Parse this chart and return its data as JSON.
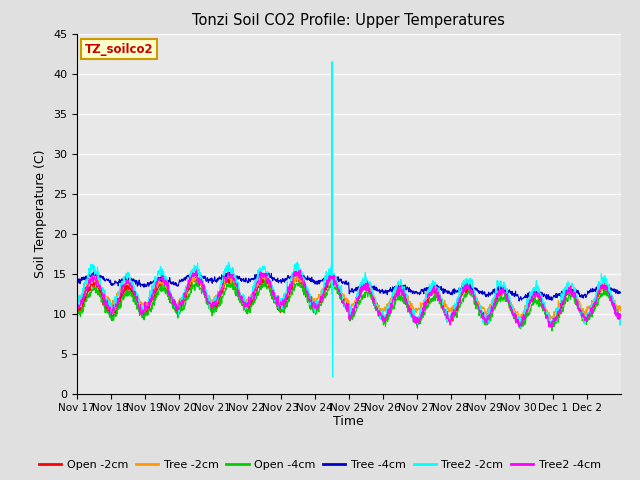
{
  "title": "Tonzi Soil CO2 Profile: Upper Temperatures",
  "ylabel": "Soil Temperature (C)",
  "xlabel": "Time",
  "watermark": "TZ_soilco2",
  "ylim": [
    0,
    45
  ],
  "yticks": [
    0,
    5,
    10,
    15,
    20,
    25,
    30,
    35,
    40,
    45
  ],
  "x_tick_labels": [
    "Nov 17",
    "Nov 18",
    "Nov 19",
    "Nov 20",
    "Nov 21",
    "Nov 22",
    "Nov 23",
    "Nov 24",
    "Nov 25",
    "Nov 26",
    "Nov 27",
    "Nov 28",
    "Nov 29",
    "Nov 30",
    "Dec 1",
    "Dec 2"
  ],
  "background_color": "#e0e0e0",
  "plot_bg_color": "#e8e8e8",
  "grid_color": "#ffffff",
  "series": [
    {
      "label": "Open -2cm",
      "color": "#ff0000"
    },
    {
      "label": "Tree -2cm",
      "color": "#ff9900"
    },
    {
      "label": "Open -4cm",
      "color": "#00cc00"
    },
    {
      "label": "Tree -4cm",
      "color": "#0000cc"
    },
    {
      "label": "Tree2 -2cm",
      "color": "#00ffff"
    },
    {
      "label": "Tree2 -4cm",
      "color": "#ff00ff"
    }
  ],
  "figsize": [
    6.4,
    4.8
  ],
  "dpi": 100
}
